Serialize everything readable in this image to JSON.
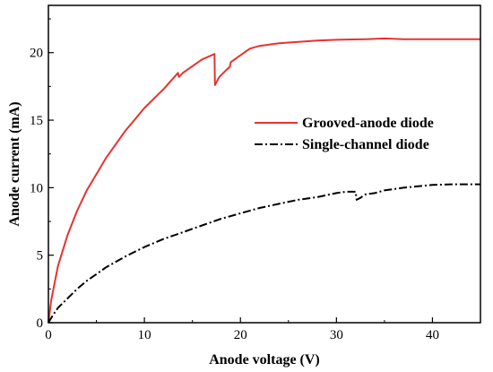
{
  "chart_data": {
    "type": "line",
    "xlabel": "Anode voltage (V)",
    "ylabel": "Anode current (mA)",
    "xlim": [
      0,
      45
    ],
    "ylim": [
      0,
      23.5
    ],
    "x_ticks": [
      0,
      10,
      20,
      30,
      40
    ],
    "y_ticks": [
      0,
      5,
      10,
      15,
      20
    ],
    "grid": false,
    "legend_position": "right-middle",
    "series": [
      {
        "name": "Grooved-anode diode",
        "color": "#e8322f",
        "line_style": "solid",
        "x": [
          0,
          0.3,
          1,
          2,
          3,
          4,
          6,
          8,
          10,
          12,
          13.5,
          13.6,
          14,
          15,
          16,
          17,
          17.3,
          17.35,
          17.8,
          18.5,
          18.9,
          19,
          20,
          21,
          22,
          24,
          26,
          28,
          30,
          33,
          35,
          37,
          40,
          45
        ],
        "y": [
          0,
          1.7,
          4.2,
          6.5,
          8.3,
          9.8,
          12.2,
          14.2,
          15.9,
          17.3,
          18.5,
          18.2,
          18.5,
          19.0,
          19.5,
          19.8,
          19.9,
          17.6,
          18.2,
          18.7,
          18.95,
          19.3,
          19.8,
          20.3,
          20.5,
          20.7,
          20.8,
          20.9,
          20.95,
          21.0,
          21.05,
          21.0,
          21.0,
          21.0
        ]
      },
      {
        "name": "Single-channel diode",
        "color": "#000000",
        "line_style": "dash-dot",
        "x": [
          0,
          0.5,
          1,
          2,
          3,
          4,
          5,
          6,
          8,
          10,
          12,
          14,
          16,
          18,
          20,
          22,
          24,
          26,
          28,
          30,
          31,
          32,
          32.1,
          32.5,
          33,
          34,
          35,
          37,
          40,
          42,
          45
        ],
        "y": [
          0,
          0.6,
          1.1,
          1.8,
          2.5,
          3.1,
          3.6,
          4.1,
          4.9,
          5.6,
          6.2,
          6.7,
          7.2,
          7.7,
          8.1,
          8.5,
          8.8,
          9.1,
          9.3,
          9.6,
          9.7,
          9.7,
          9.1,
          9.25,
          9.5,
          9.6,
          9.8,
          10.0,
          10.2,
          10.25,
          10.25
        ]
      }
    ]
  }
}
